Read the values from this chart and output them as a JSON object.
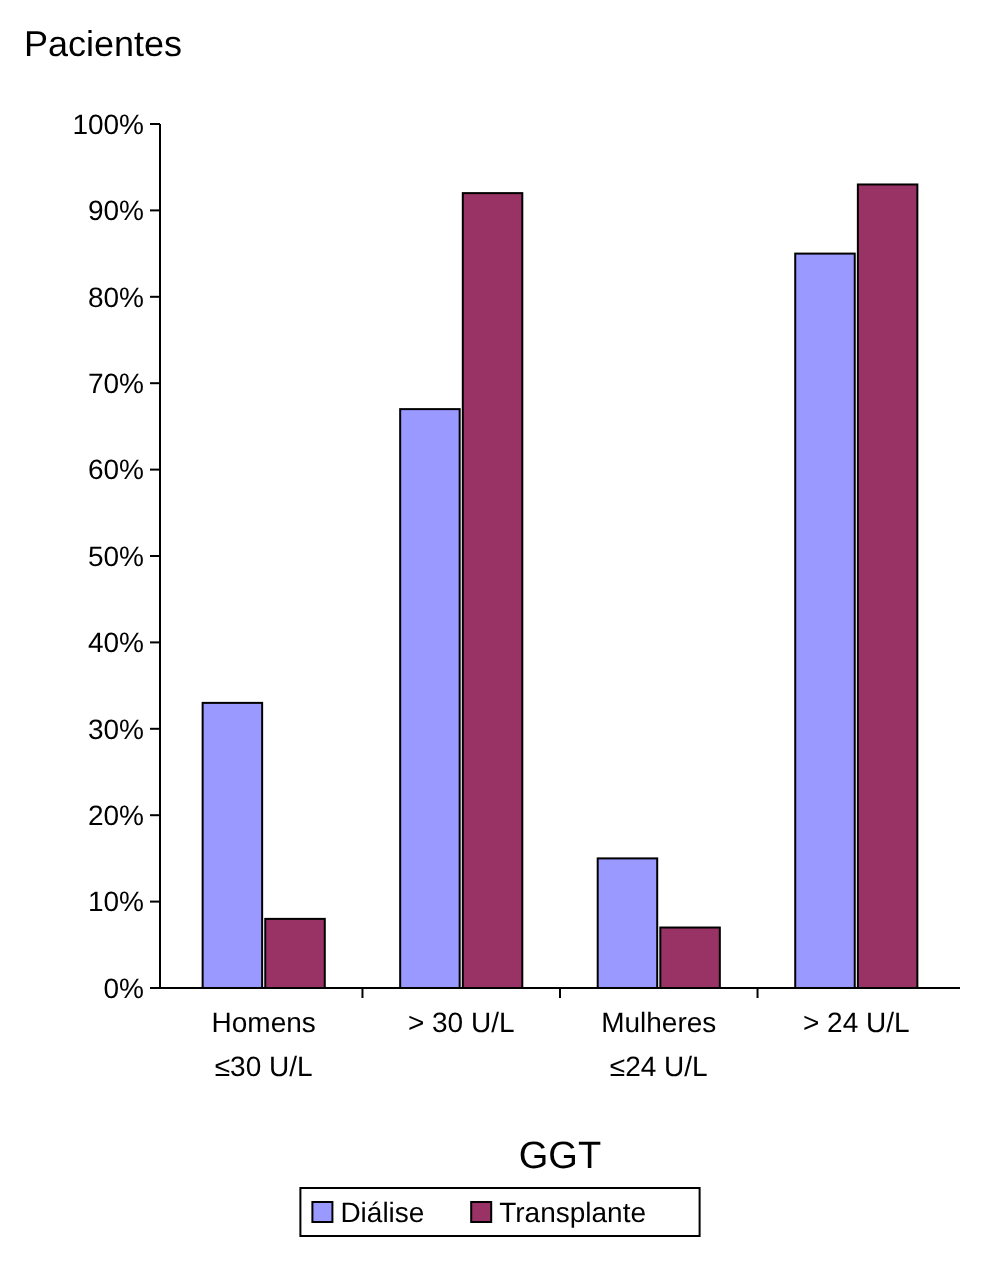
{
  "chart_data": {
    "type": "bar",
    "ylabel": "Pacientes",
    "xlabel": "GGT",
    "categories": [
      "Homens\n≤30 U/L",
      "> 30 U/L",
      "Mulheres\n≤24 U/L",
      "> 24 U/L"
    ],
    "series": [
      {
        "name": "Diálise",
        "color": "#9999ff",
        "values": [
          33,
          67,
          15,
          85
        ]
      },
      {
        "name": "Transplante",
        "color": "#993366",
        "values": [
          8,
          92,
          7,
          93
        ]
      }
    ],
    "ylim": [
      0,
      100
    ],
    "yticks": [
      {
        "value": 0,
        "label": "0%"
      },
      {
        "value": 10,
        "label": "10%"
      },
      {
        "value": 20,
        "label": "20%"
      },
      {
        "value": 30,
        "label": "30%"
      },
      {
        "value": 40,
        "label": "40%"
      },
      {
        "value": 50,
        "label": "50%"
      },
      {
        "value": 60,
        "label": "60%"
      },
      {
        "value": 70,
        "label": "70%"
      },
      {
        "value": 80,
        "label": "80%"
      },
      {
        "value": 90,
        "label": "90%"
      },
      {
        "value": 100,
        "label": "100%"
      }
    ],
    "grid": false,
    "legend": "bottom"
  }
}
